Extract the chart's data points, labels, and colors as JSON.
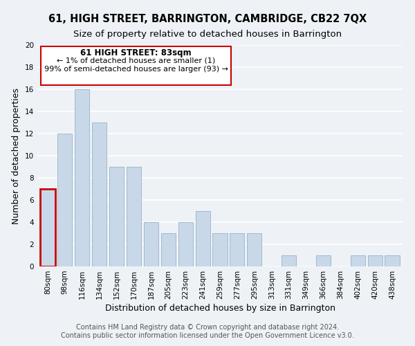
{
  "title": "61, HIGH STREET, BARRINGTON, CAMBRIDGE, CB22 7QX",
  "subtitle": "Size of property relative to detached houses in Barrington",
  "xlabel": "Distribution of detached houses by size in Barrington",
  "ylabel": "Number of detached properties",
  "bin_labels": [
    "80sqm",
    "98sqm",
    "116sqm",
    "134sqm",
    "152sqm",
    "170sqm",
    "187sqm",
    "205sqm",
    "223sqm",
    "241sqm",
    "259sqm",
    "277sqm",
    "295sqm",
    "313sqm",
    "331sqm",
    "349sqm",
    "366sqm",
    "384sqm",
    "402sqm",
    "420sqm",
    "438sqm"
  ],
  "bar_heights": [
    7,
    12,
    16,
    13,
    9,
    9,
    4,
    3,
    4,
    5,
    3,
    3,
    3,
    0,
    1,
    0,
    1,
    0,
    1,
    1,
    1
  ],
  "bar_color": "#c8d8e8",
  "bar_edge_color": "#a0b8cc",
  "highlight_bar_index": 0,
  "highlight_edge_color": "#cc0000",
  "ylim": [
    0,
    20
  ],
  "yticks": [
    0,
    2,
    4,
    6,
    8,
    10,
    12,
    14,
    16,
    18,
    20
  ],
  "annotation_title": "61 HIGH STREET: 83sqm",
  "annotation_line1": "← 1% of detached houses are smaller (1)",
  "annotation_line2": "99% of semi-detached houses are larger (93) →",
  "annotation_box_color": "#ffffff",
  "annotation_box_edge_color": "#cc0000",
  "footer_line1": "Contains HM Land Registry data © Crown copyright and database right 2024.",
  "footer_line2": "Contains public sector information licensed under the Open Government Licence v3.0.",
  "background_color": "#eef2f6",
  "grid_color": "#ffffff",
  "title_fontsize": 10.5,
  "subtitle_fontsize": 9.5,
  "axis_label_fontsize": 9,
  "tick_fontsize": 7.5,
  "footer_fontsize": 7
}
